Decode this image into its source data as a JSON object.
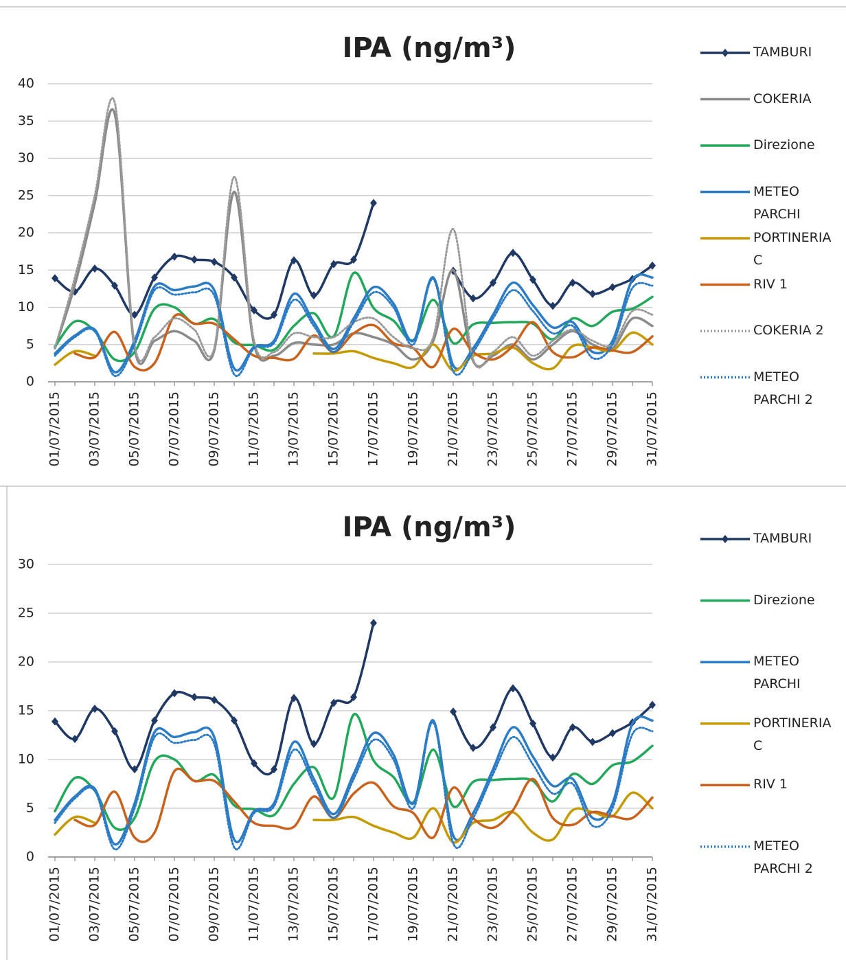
{
  "chart_data": [
    {
      "type": "line",
      "title": "IPA  (ng/m³)",
      "categories": [
        "01/07/2015",
        null,
        "03/07/2015",
        null,
        "05/07/2015",
        null,
        "07/07/2015",
        null,
        "09/07/2015",
        null,
        "11/07/2015",
        null,
        "13/07/2015",
        null,
        "15/07/2015",
        null,
        "17/07/2015",
        null,
        "19/07/2015",
        null,
        "21/07/2015",
        null,
        "23/07/2015",
        null,
        "25/07/2015",
        null,
        "27/07/2015",
        null,
        "29/07/2015",
        null,
        "31/07/2015"
      ],
      "ylim": [
        0,
        40
      ],
      "yticks": [
        0,
        5,
        10,
        15,
        20,
        25,
        30,
        35,
        40
      ],
      "grid": true,
      "legend": "right",
      "series": [
        {
          "name": "TAMBURI",
          "color": "#1f3864",
          "marker": "diamond",
          "values": [
            13.9,
            12.1,
            15.2,
            12.9,
            9.0,
            14.0,
            16.8,
            16.4,
            16.1,
            14.0,
            9.6,
            9.0,
            16.3,
            11.6,
            15.8,
            16.4,
            24.0,
            null,
            null,
            null,
            14.9,
            11.2,
            13.3,
            17.3,
            13.7,
            10.2,
            13.3,
            11.8,
            12.7,
            13.8,
            15.6
          ]
        },
        {
          "name": "COKERIA",
          "color": "#8a8a8a",
          "values": [
            4.5,
            13,
            24,
            36,
            4.5,
            5.5,
            6.8,
            5.5,
            4.2,
            25.5,
            5,
            3.5,
            5.2,
            5.0,
            5.0,
            6.5,
            6.0,
            5.0,
            3.0,
            5.5,
            15,
            2.8,
            3.5,
            5.0,
            3.0,
            5.0,
            6.8,
            5.0,
            4.5,
            8.5,
            7.5
          ]
        },
        {
          "name": "Direzione",
          "color": "#22a85a",
          "values": [
            4.7,
            8.1,
            6.8,
            3.0,
            4.0,
            9.8,
            10.0,
            7.8,
            8.4,
            5.3,
            4.9,
            4.3,
            7.5,
            9.2,
            6.1,
            14.6,
            9.9,
            8.2,
            5.6,
            11.0,
            5.2,
            7.7,
            7.9,
            8.0,
            7.8,
            5.7,
            8.5,
            7.5,
            9.4,
            9.8,
            11.4
          ]
        },
        {
          "name": "METEO PARCHI",
          "color": "#2b7cc4",
          "values": [
            3.8,
            6.2,
            7.0,
            1.3,
            5.5,
            12.8,
            12.3,
            12.8,
            12.3,
            1.8,
            4.7,
            5.5,
            11.8,
            8.0,
            4.4,
            8.5,
            12.7,
            10.5,
            5.5,
            14.0,
            2.2,
            4.5,
            9.0,
            13.3,
            10.3,
            7.3,
            8.0,
            4.0,
            5.5,
            13.7,
            14.0
          ]
        },
        {
          "name": "PORTINERIA C",
          "color": "#c49a00",
          "values": [
            2.3,
            4.1,
            3.5,
            null,
            null,
            null,
            null,
            null,
            null,
            null,
            null,
            null,
            null,
            3.8,
            3.8,
            4.1,
            3.2,
            2.5,
            2.0,
            5.0,
            1.5,
            3.5,
            3.8,
            4.6,
            2.5,
            1.8,
            4.8,
            4.6,
            4.2,
            6.6,
            5.0
          ]
        },
        {
          "name": "RIV 1",
          "color": "#c8621c",
          "values": [
            null,
            3.8,
            3.3,
            6.7,
            2.0,
            2.5,
            8.8,
            7.8,
            7.8,
            5.7,
            3.5,
            3.2,
            3.1,
            6.2,
            4.0,
            6.5,
            7.6,
            5.2,
            4.5,
            2.0,
            7.1,
            4.0,
            3.0,
            4.8,
            8.0,
            4.0,
            3.3,
            4.6,
            4.2,
            4.0,
            6.1
          ]
        },
        {
          "name": "COKERIA 2",
          "color": "#9a9a9a",
          "dash": "dotted",
          "values": [
            4.5,
            14,
            25,
            37.5,
            5.0,
            6.0,
            8.5,
            7.0,
            4.5,
            27.5,
            5.5,
            4.0,
            6.5,
            6.0,
            6.0,
            8.0,
            8.5,
            6.0,
            4.5,
            6.0,
            20.5,
            3.0,
            4.0,
            6.0,
            3.5,
            5.5,
            7.0,
            5.5,
            5.0,
            9.5,
            9.0
          ]
        },
        {
          "name": "METEO PARCHI 2",
          "color": "#2b7cc4",
          "dash": "dotted",
          "values": [
            3.5,
            6.0,
            6.8,
            0.8,
            5.0,
            12.3,
            11.7,
            12.0,
            11.6,
            1.0,
            4.5,
            5.2,
            11.0,
            7.5,
            4.0,
            8.0,
            12.0,
            10.0,
            5.0,
            13.8,
            1.4,
            4.0,
            8.5,
            12.3,
            9.5,
            6.5,
            7.5,
            3.2,
            5.0,
            12.6,
            12.9
          ]
        }
      ]
    },
    {
      "type": "line",
      "title": "IPA  (ng/m³)",
      "categories": [
        "01/07/2015",
        null,
        "03/07/2015",
        null,
        "05/07/2015",
        null,
        "07/07/2015",
        null,
        "09/07/2015",
        null,
        "11/07/2015",
        null,
        "13/07/2015",
        null,
        "15/07/2015",
        null,
        "17/07/2015",
        null,
        "19/07/2015",
        null,
        "21/07/2015",
        null,
        "23/07/2015",
        null,
        "25/07/2015",
        null,
        "27/07/2015",
        null,
        "29/07/2015",
        null,
        "31/07/2015"
      ],
      "ylim": [
        0,
        30
      ],
      "yticks": [
        0,
        5,
        10,
        15,
        20,
        25,
        30
      ],
      "grid": true,
      "legend": "right",
      "series": [
        {
          "name": "TAMBURI",
          "color": "#1f3864",
          "marker": "diamond",
          "values": [
            13.9,
            12.1,
            15.2,
            12.9,
            9.0,
            14.0,
            16.8,
            16.4,
            16.1,
            14.0,
            9.6,
            9.0,
            16.3,
            11.6,
            15.8,
            16.4,
            24.0,
            null,
            null,
            null,
            14.9,
            11.2,
            13.3,
            17.3,
            13.7,
            10.2,
            13.3,
            11.8,
            12.7,
            13.8,
            15.6
          ]
        },
        {
          "name": "Direzione",
          "color": "#22a85a",
          "values": [
            4.7,
            8.1,
            6.8,
            3.0,
            4.0,
            9.8,
            10.0,
            7.8,
            8.4,
            5.3,
            4.9,
            4.3,
            7.5,
            9.2,
            6.1,
            14.6,
            9.9,
            8.2,
            5.6,
            11.0,
            5.2,
            7.7,
            7.9,
            8.0,
            7.8,
            5.7,
            8.5,
            7.5,
            9.4,
            9.8,
            11.4
          ]
        },
        {
          "name": "METEO PARCHI",
          "color": "#2b7cc4",
          "values": [
            3.8,
            6.2,
            7.0,
            1.3,
            5.5,
            12.8,
            12.3,
            12.8,
            12.3,
            1.8,
            4.7,
            5.5,
            11.8,
            8.0,
            4.4,
            8.5,
            12.7,
            10.5,
            5.5,
            14.0,
            2.2,
            4.5,
            9.0,
            13.3,
            10.3,
            7.3,
            8.0,
            4.0,
            5.5,
            13.7,
            14.0
          ]
        },
        {
          "name": "PORTINERIA C",
          "color": "#c49a00",
          "values": [
            2.3,
            4.1,
            3.5,
            null,
            null,
            null,
            null,
            null,
            null,
            null,
            null,
            null,
            null,
            3.8,
            3.8,
            4.1,
            3.2,
            2.5,
            2.0,
            5.0,
            1.5,
            3.5,
            3.8,
            4.6,
            2.5,
            1.8,
            4.8,
            4.6,
            4.2,
            6.6,
            5.0
          ]
        },
        {
          "name": "RIV 1",
          "color": "#c8621c",
          "values": [
            null,
            3.8,
            3.3,
            6.7,
            2.0,
            2.5,
            8.8,
            7.8,
            7.8,
            5.7,
            3.5,
            3.2,
            3.1,
            6.2,
            4.0,
            6.5,
            7.6,
            5.2,
            4.5,
            2.0,
            7.1,
            4.0,
            3.0,
            4.8,
            8.0,
            4.0,
            3.3,
            4.6,
            4.2,
            4.0,
            6.1
          ]
        },
        {
          "name": "METEO PARCHI 2",
          "color": "#2b7cc4",
          "dash": "dotted",
          "values": [
            3.5,
            6.0,
            6.8,
            0.8,
            5.0,
            12.3,
            11.7,
            12.0,
            11.6,
            1.0,
            4.5,
            5.2,
            11.0,
            7.5,
            4.0,
            8.0,
            12.0,
            10.0,
            5.0,
            13.8,
            1.4,
            4.0,
            8.5,
            12.3,
            9.5,
            6.5,
            7.5,
            3.2,
            5.0,
            12.6,
            12.9
          ]
        }
      ]
    }
  ]
}
